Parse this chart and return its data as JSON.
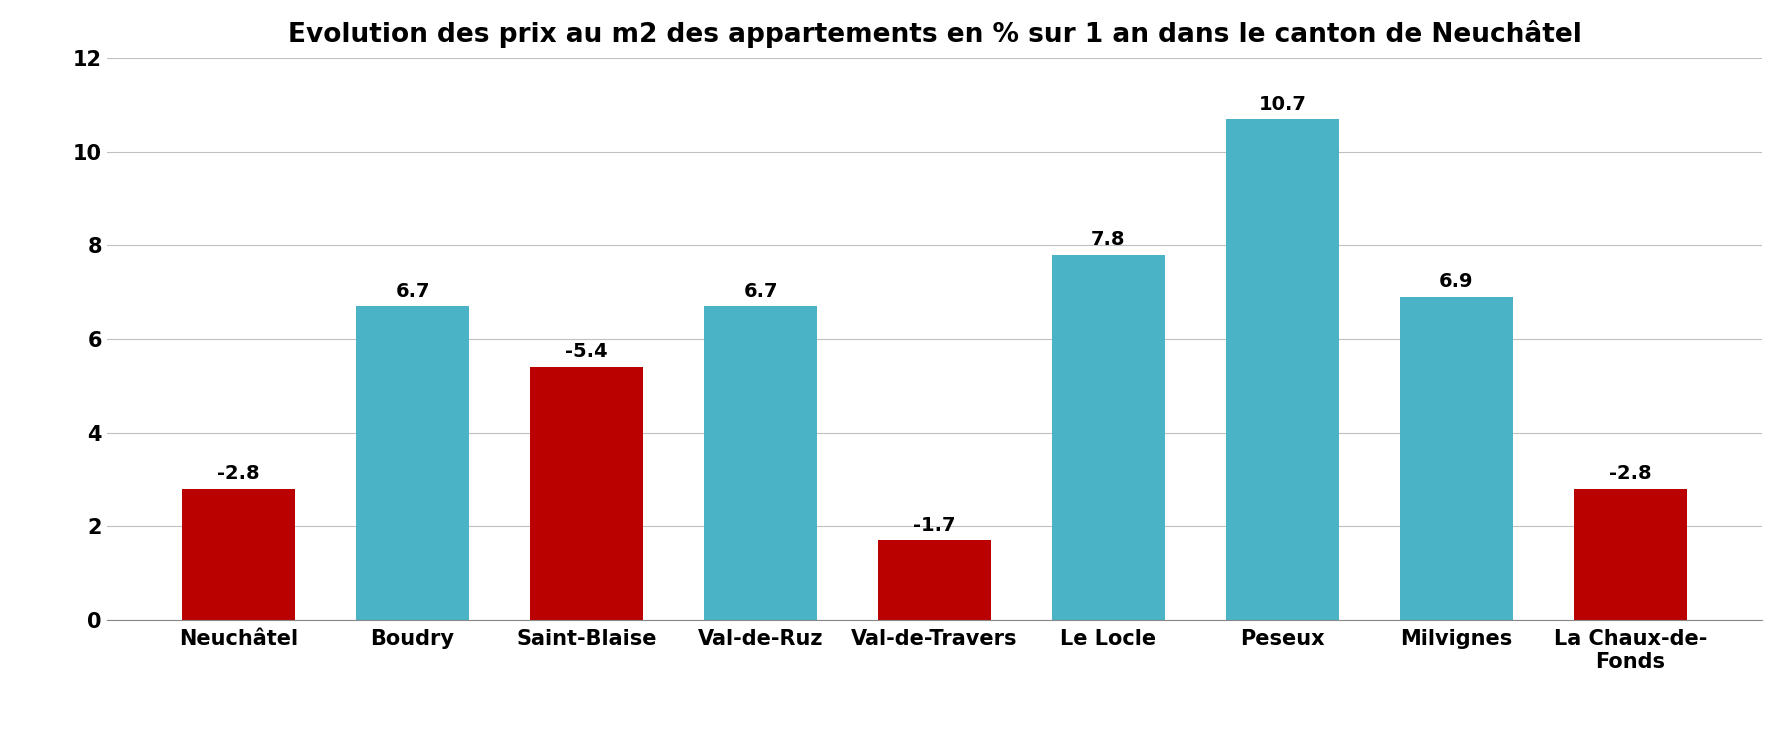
{
  "title": "Evolution des prix au m2 des appartements en % sur 1 an dans le canton de Neuchâtel",
  "categories": [
    "Neuchâtel",
    "Boudry",
    "Saint-Blaise",
    "Val-de-Ruz",
    "Val-de-Travers",
    "Le Locle",
    "Peseux",
    "Milvignes",
    "La Chaux-de-\nFonds"
  ],
  "values": [
    2.8,
    6.7,
    5.4,
    6.7,
    1.7,
    7.8,
    10.7,
    6.9,
    2.8
  ],
  "labels": [
    "-2.8",
    "6.7",
    "-5.4",
    "6.7",
    "-1.7",
    "7.8",
    "10.7",
    "6.9",
    "-2.8"
  ],
  "colors": [
    "#bb0000",
    "#4ab3c5",
    "#bb0000",
    "#4ab3c5",
    "#bb0000",
    "#4ab3c5",
    "#4ab3c5",
    "#4ab3c5",
    "#bb0000"
  ],
  "ylim": [
    0,
    12
  ],
  "yticks": [
    0,
    2,
    4,
    6,
    8,
    10,
    12
  ],
  "background_color": "#ffffff",
  "title_fontsize": 19,
  "label_fontsize": 14,
  "tick_fontsize": 15,
  "bar_width": 0.65
}
